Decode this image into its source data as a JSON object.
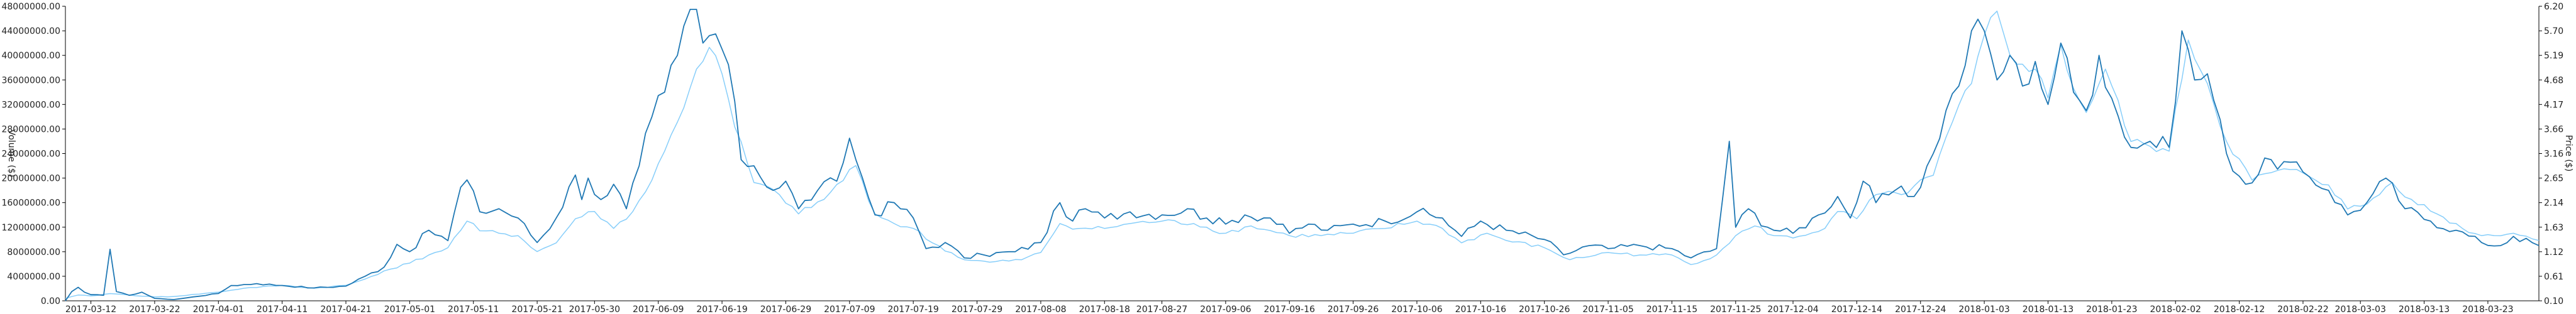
{
  "chart_data": {
    "type": "line",
    "title": "",
    "ylabel_left": "Volume ($)",
    "ylabel_right": "Price ($)",
    "xlabel": "",
    "x_tick_labels": [
      "2017-03-12",
      "2017-03-22",
      "2017-04-01",
      "2017-04-11",
      "2017-04-21",
      "2017-05-01",
      "2017-05-11",
      "2017-05-21",
      "2017-05-30",
      "2017-06-09",
      "2017-06-19",
      "2017-06-29",
      "2017-07-09",
      "2017-07-19",
      "2017-07-29",
      "2017-08-08",
      "2017-08-18",
      "2017-08-27",
      "2017-09-06",
      "2017-09-16",
      "2017-09-26",
      "2017-10-06",
      "2017-10-16",
      "2017-10-26",
      "2017-11-05",
      "2017-11-15",
      "2017-11-25",
      "2017-12-04",
      "2017-12-14",
      "2017-12-24",
      "2018-01-03",
      "2018-01-13",
      "2018-01-23",
      "2018-02-02",
      "2018-02-12",
      "2018-02-22",
      "2018-03-03",
      "2018-03-13",
      "2018-03-23"
    ],
    "y_left_tick_labels": [
      "0.00",
      "4000000.00",
      "8000000.00",
      "12000000.00",
      "16000000.00",
      "20000000.00",
      "24000000.00",
      "28000000.00",
      "32000000.00",
      "36000000.00",
      "40000000.00",
      "44000000.00",
      "48000000.00"
    ],
    "y_right_tick_labels": [
      "0.10",
      "0.61",
      "1.12",
      "1.63",
      "2.14",
      "2.65",
      "3.16",
      "3.66",
      "4.17",
      "4.68",
      "5.19",
      "5.70",
      "6.20"
    ],
    "ylim_left": [
      0,
      48000000
    ],
    "ylim_right": [
      0.1,
      6.2
    ],
    "grid": false,
    "legend": "none",
    "colors": {
      "volume": "#1f78b4",
      "price": "#87cefa"
    },
    "series": [
      {
        "key": "volume",
        "axis": "left",
        "anchors": [
          [
            "2017-03-08",
            0
          ],
          [
            "2017-03-09",
            1500000
          ],
          [
            "2017-03-10",
            2200000
          ],
          [
            "2017-03-11",
            1400000
          ],
          [
            "2017-03-12",
            1000000
          ],
          [
            "2017-03-14",
            900000
          ],
          [
            "2017-03-15",
            8400000
          ],
          [
            "2017-03-16",
            1500000
          ],
          [
            "2017-03-18",
            900000
          ],
          [
            "2017-03-20",
            1400000
          ],
          [
            "2017-03-22",
            400000
          ],
          [
            "2017-03-25",
            200000
          ],
          [
            "2017-04-01",
            1200000
          ],
          [
            "2017-04-03",
            2500000
          ],
          [
            "2017-04-07",
            2800000
          ],
          [
            "2017-04-11",
            2500000
          ],
          [
            "2017-04-16",
            2100000
          ],
          [
            "2017-04-21",
            2400000
          ],
          [
            "2017-04-24",
            4000000
          ],
          [
            "2017-04-27",
            5500000
          ],
          [
            "2017-04-29",
            9200000
          ],
          [
            "2017-05-01",
            8000000
          ],
          [
            "2017-05-04",
            11500000
          ],
          [
            "2017-05-07",
            9800000
          ],
          [
            "2017-05-09",
            18500000
          ],
          [
            "2017-05-10",
            19700000
          ],
          [
            "2017-05-12",
            14500000
          ],
          [
            "2017-05-15",
            15000000
          ],
          [
            "2017-05-18",
            13500000
          ],
          [
            "2017-05-21",
            9500000
          ],
          [
            "2017-05-24",
            13500000
          ],
          [
            "2017-05-27",
            20500000
          ],
          [
            "2017-05-28",
            16500000
          ],
          [
            "2017-05-29",
            20000000
          ],
          [
            "2017-05-31",
            16500000
          ],
          [
            "2017-06-02",
            19000000
          ],
          [
            "2017-06-04",
            15000000
          ],
          [
            "2017-06-06",
            22000000
          ],
          [
            "2017-06-08",
            30000000
          ],
          [
            "2017-06-10",
            34000000
          ],
          [
            "2017-06-12",
            40000000
          ],
          [
            "2017-06-14",
            47500000
          ],
          [
            "2017-06-15",
            47500000
          ],
          [
            "2017-06-16",
            42000000
          ],
          [
            "2017-06-18",
            43500000
          ],
          [
            "2017-06-20",
            38500000
          ],
          [
            "2017-06-22",
            23000000
          ],
          [
            "2017-06-24",
            22000000
          ],
          [
            "2017-06-27",
            18000000
          ],
          [
            "2017-06-29",
            19500000
          ],
          [
            "2017-07-01",
            15000000
          ],
          [
            "2017-07-04",
            18000000
          ],
          [
            "2017-07-07",
            19500000
          ],
          [
            "2017-07-09",
            26500000
          ],
          [
            "2017-07-10",
            23000000
          ],
          [
            "2017-07-13",
            14000000
          ],
          [
            "2017-07-16",
            16000000
          ],
          [
            "2017-07-19",
            13500000
          ],
          [
            "2017-07-21",
            8500000
          ],
          [
            "2017-07-24",
            9500000
          ],
          [
            "2017-07-27",
            7000000
          ],
          [
            "2017-07-30",
            7500000
          ],
          [
            "2017-08-04",
            8000000
          ],
          [
            "2017-08-08",
            9500000
          ],
          [
            "2017-08-11",
            16000000
          ],
          [
            "2017-08-13",
            13000000
          ],
          [
            "2017-08-15",
            15000000
          ],
          [
            "2017-08-18",
            13500000
          ],
          [
            "2017-08-22",
            14500000
          ],
          [
            "2017-08-27",
            14000000
          ],
          [
            "2017-08-31",
            15000000
          ],
          [
            "2017-09-03",
            13500000
          ],
          [
            "2017-09-06",
            12500000
          ],
          [
            "2017-09-09",
            14000000
          ],
          [
            "2017-09-13",
            13500000
          ],
          [
            "2017-09-16",
            11000000
          ],
          [
            "2017-09-19",
            12500000
          ],
          [
            "2017-09-22",
            11500000
          ],
          [
            "2017-09-26",
            12500000
          ],
          [
            "2017-10-01",
            13000000
          ],
          [
            "2017-10-06",
            14500000
          ],
          [
            "2017-10-10",
            13500000
          ],
          [
            "2017-10-13",
            10500000
          ],
          [
            "2017-10-16",
            13000000
          ],
          [
            "2017-10-20",
            11500000
          ],
          [
            "2017-10-26",
            10000000
          ],
          [
            "2017-10-29",
            7500000
          ],
          [
            "2017-11-02",
            9000000
          ],
          [
            "2017-11-05",
            8500000
          ],
          [
            "2017-11-10",
            9000000
          ],
          [
            "2017-11-15",
            8500000
          ],
          [
            "2017-11-18",
            7000000
          ],
          [
            "2017-11-22",
            8500000
          ],
          [
            "2017-11-24",
            26000000
          ],
          [
            "2017-11-25",
            12000000
          ],
          [
            "2017-11-27",
            15000000
          ],
          [
            "2017-11-30",
            12000000
          ],
          [
            "2017-12-04",
            11000000
          ],
          [
            "2017-12-08",
            14000000
          ],
          [
            "2017-12-11",
            17000000
          ],
          [
            "2017-12-13",
            13500000
          ],
          [
            "2017-12-15",
            19500000
          ],
          [
            "2017-12-17",
            16000000
          ],
          [
            "2017-12-20",
            18000000
          ],
          [
            "2017-12-23",
            17000000
          ],
          [
            "2017-12-26",
            24000000
          ],
          [
            "2017-12-28",
            31000000
          ],
          [
            "2017-12-30",
            35000000
          ],
          [
            "2018-01-01",
            44000000
          ],
          [
            "2018-01-03",
            44000000
          ],
          [
            "2018-01-05",
            36000000
          ],
          [
            "2018-01-07",
            40000000
          ],
          [
            "2018-01-09",
            35000000
          ],
          [
            "2018-01-11",
            39000000
          ],
          [
            "2018-01-13",
            32000000
          ],
          [
            "2018-01-15",
            42000000
          ],
          [
            "2018-01-17",
            34000000
          ],
          [
            "2018-01-19",
            31000000
          ],
          [
            "2018-01-21",
            40000000
          ],
          [
            "2018-01-23",
            33000000
          ],
          [
            "2018-01-26",
            25000000
          ],
          [
            "2018-01-29",
            26000000
          ],
          [
            "2018-02-01",
            25000000
          ],
          [
            "2018-02-03",
            44000000
          ],
          [
            "2018-02-05",
            36000000
          ],
          [
            "2018-02-07",
            37000000
          ],
          [
            "2018-02-10",
            24000000
          ],
          [
            "2018-02-13",
            19000000
          ],
          [
            "2018-02-17",
            23000000
          ],
          [
            "2018-02-22",
            21000000
          ],
          [
            "2018-02-26",
            18000000
          ],
          [
            "2018-03-01",
            14000000
          ],
          [
            "2018-03-04",
            16000000
          ],
          [
            "2018-03-07",
            20000000
          ],
          [
            "2018-03-10",
            15000000
          ],
          [
            "2018-03-14",
            13000000
          ],
          [
            "2018-03-18",
            11500000
          ],
          [
            "2018-03-22",
            9500000
          ],
          [
            "2018-03-25",
            9000000
          ],
          [
            "2018-03-27",
            10500000
          ],
          [
            "2018-03-31",
            9000000
          ]
        ]
      },
      {
        "key": "price",
        "axis": "right",
        "anchors": [
          [
            "2017-03-08",
            0.15
          ],
          [
            "2017-03-10",
            0.22
          ],
          [
            "2017-03-12",
            0.2
          ],
          [
            "2017-03-15",
            0.25
          ],
          [
            "2017-03-18",
            0.22
          ],
          [
            "2017-03-22",
            0.18
          ],
          [
            "2017-03-25",
            0.19
          ],
          [
            "2017-04-01",
            0.28
          ],
          [
            "2017-04-05",
            0.36
          ],
          [
            "2017-04-11",
            0.42
          ],
          [
            "2017-04-16",
            0.36
          ],
          [
            "2017-04-21",
            0.42
          ],
          [
            "2017-04-24",
            0.55
          ],
          [
            "2017-04-27",
            0.72
          ],
          [
            "2017-05-01",
            0.88
          ],
          [
            "2017-05-04",
            1.05
          ],
          [
            "2017-05-07",
            1.2
          ],
          [
            "2017-05-10",
            1.75
          ],
          [
            "2017-05-12",
            1.55
          ],
          [
            "2017-05-15",
            1.5
          ],
          [
            "2017-05-18",
            1.45
          ],
          [
            "2017-05-21",
            1.12
          ],
          [
            "2017-05-24",
            1.3
          ],
          [
            "2017-05-27",
            1.8
          ],
          [
            "2017-05-30",
            1.95
          ],
          [
            "2017-06-02",
            1.6
          ],
          [
            "2017-06-05",
            1.95
          ],
          [
            "2017-06-08",
            2.6
          ],
          [
            "2017-06-10",
            3.2
          ],
          [
            "2017-06-12",
            3.8
          ],
          [
            "2017-06-15",
            4.9
          ],
          [
            "2017-06-17",
            5.35
          ],
          [
            "2017-06-19",
            4.8
          ],
          [
            "2017-06-21",
            3.7
          ],
          [
            "2017-06-24",
            2.55
          ],
          [
            "2017-06-28",
            2.3
          ],
          [
            "2017-07-01",
            1.9
          ],
          [
            "2017-07-05",
            2.2
          ],
          [
            "2017-07-10",
            2.9
          ],
          [
            "2017-07-13",
            1.9
          ],
          [
            "2017-07-16",
            1.7
          ],
          [
            "2017-07-19",
            1.6
          ],
          [
            "2017-07-22",
            1.3
          ],
          [
            "2017-07-27",
            0.95
          ],
          [
            "2017-07-31",
            0.9
          ],
          [
            "2017-08-05",
            0.95
          ],
          [
            "2017-08-08",
            1.1
          ],
          [
            "2017-08-11",
            1.7
          ],
          [
            "2017-08-14",
            1.6
          ],
          [
            "2017-08-18",
            1.6
          ],
          [
            "2017-08-22",
            1.7
          ],
          [
            "2017-08-27",
            1.75
          ],
          [
            "2017-09-01",
            1.7
          ],
          [
            "2017-09-06",
            1.5
          ],
          [
            "2017-09-10",
            1.65
          ],
          [
            "2017-09-16",
            1.45
          ],
          [
            "2017-09-21",
            1.45
          ],
          [
            "2017-09-26",
            1.5
          ],
          [
            "2017-10-01",
            1.6
          ],
          [
            "2017-10-06",
            1.75
          ],
          [
            "2017-10-10",
            1.6
          ],
          [
            "2017-10-13",
            1.3
          ],
          [
            "2017-10-17",
            1.5
          ],
          [
            "2017-10-20",
            1.35
          ],
          [
            "2017-10-26",
            1.2
          ],
          [
            "2017-10-30",
            0.95
          ],
          [
            "2017-11-05",
            1.1
          ],
          [
            "2017-11-10",
            1.05
          ],
          [
            "2017-11-15",
            1.05
          ],
          [
            "2017-11-18",
            0.85
          ],
          [
            "2017-11-22",
            1.05
          ],
          [
            "2017-11-25",
            1.45
          ],
          [
            "2017-11-28",
            1.65
          ],
          [
            "2017-12-01",
            1.45
          ],
          [
            "2017-12-04",
            1.4
          ],
          [
            "2017-12-09",
            1.6
          ],
          [
            "2017-12-11",
            1.95
          ],
          [
            "2017-12-14",
            1.8
          ],
          [
            "2017-12-17",
            2.3
          ],
          [
            "2017-12-21",
            2.3
          ],
          [
            "2017-12-26",
            2.7
          ],
          [
            "2017-12-29",
            3.8
          ],
          [
            "2018-01-01",
            4.6
          ],
          [
            "2018-01-03",
            5.6
          ],
          [
            "2018-01-05",
            6.1
          ],
          [
            "2018-01-07",
            5.2
          ],
          [
            "2018-01-09",
            5.0
          ],
          [
            "2018-01-11",
            4.9
          ],
          [
            "2018-01-13",
            4.3
          ],
          [
            "2018-01-15",
            5.4
          ],
          [
            "2018-01-17",
            4.5
          ],
          [
            "2018-01-19",
            4.0
          ],
          [
            "2018-01-22",
            4.9
          ],
          [
            "2018-01-26",
            3.4
          ],
          [
            "2018-01-29",
            3.3
          ],
          [
            "2018-02-01",
            3.2
          ],
          [
            "2018-02-04",
            5.5
          ],
          [
            "2018-02-07",
            4.6
          ],
          [
            "2018-02-10",
            3.4
          ],
          [
            "2018-02-14",
            2.6
          ],
          [
            "2018-02-18",
            2.8
          ],
          [
            "2018-02-22",
            2.75
          ],
          [
            "2018-02-26",
            2.5
          ],
          [
            "2018-03-01",
            2.0
          ],
          [
            "2018-03-04",
            2.1
          ],
          [
            "2018-03-08",
            2.55
          ],
          [
            "2018-03-11",
            2.2
          ],
          [
            "2018-03-15",
            1.9
          ],
          [
            "2018-03-19",
            1.6
          ],
          [
            "2018-03-22",
            1.45
          ],
          [
            "2018-03-27",
            1.5
          ],
          [
            "2018-03-31",
            1.35
          ]
        ]
      }
    ]
  }
}
